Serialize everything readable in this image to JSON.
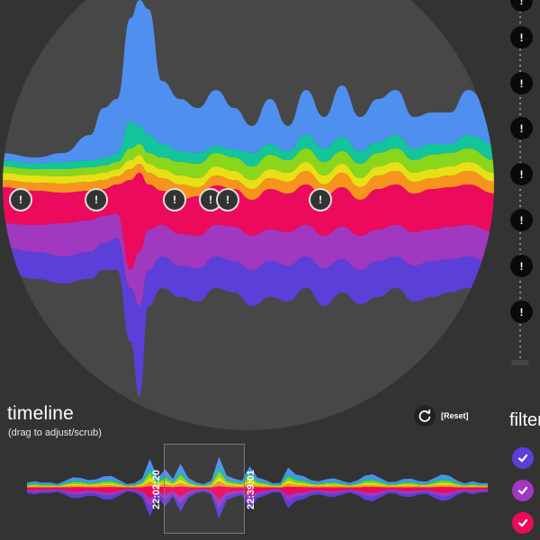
{
  "timeline": {
    "title": "timeline",
    "subtitle": "(drag to adjust/scrub)",
    "reset_label": "[Reset]",
    "start_time": "22:02:20",
    "end_time": "22:39:01"
  },
  "filters": {
    "title": "filters",
    "items": [
      {
        "color": "#5b3fd8"
      },
      {
        "color": "#a038c0"
      },
      {
        "color": "#ec0a5c"
      }
    ]
  },
  "markers": {
    "glyph": "!"
  },
  "palette": {
    "background": "#333333",
    "circle": "#474747",
    "blue": "#4f8ff0",
    "teal": "#14c49a",
    "lime": "#8ad61c",
    "yellow": "#e6e014",
    "orange": "#f7941e",
    "pink": "#ec0a5c",
    "purple": "#a038c0",
    "indigo": "#5b3fd8"
  }
}
